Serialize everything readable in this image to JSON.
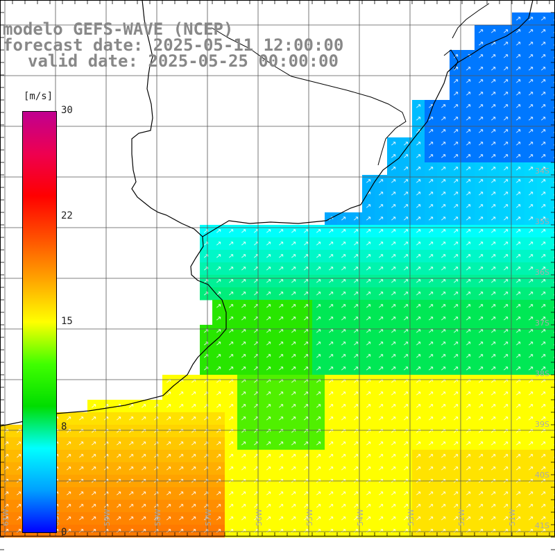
{
  "title": {
    "line1": "modelo GEFS-WAVE (NCEP)",
    "line2": "forecast date: 2025-05-11 12:00:00",
    "line3": "valid date: 2025-05-25 00:00:00"
  },
  "colorbar": {
    "unit": "[m/s]",
    "ticks": [
      "30",
      "22",
      "15",
      "8",
      "0"
    ],
    "colors": [
      "#0000ff",
      "#00a0ff",
      "#00ffff",
      "#00dd00",
      "#40ff00",
      "#ffff00",
      "#ffa500",
      "#ff5000",
      "#ff0000",
      "#ee0050",
      "#c00090"
    ]
  },
  "axes": {
    "lat_labels": [
      "34S",
      "35S",
      "36S",
      "37S",
      "38S",
      "39S",
      "40S",
      "41S"
    ],
    "lon_labels": [
      "61W",
      "60W",
      "59W",
      "58W",
      "57W",
      "56W",
      "55W",
      "54W",
      "53W",
      "52W",
      "51W"
    ]
  },
  "colors": {
    "grid": "#555555",
    "coast": "#000000",
    "label": "#aaaaaa",
    "arrow": "#ffffff"
  }
}
